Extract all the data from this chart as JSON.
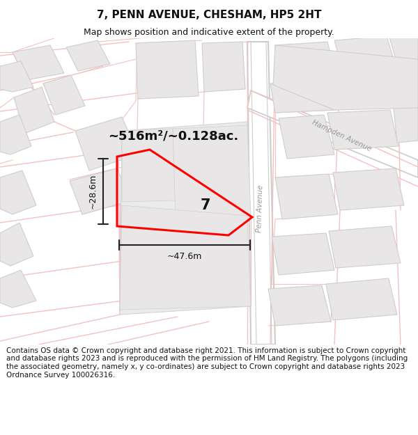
{
  "title": "7, PENN AVENUE, CHESHAM, HP5 2HT",
  "subtitle": "Map shows position and indicative extent of the property.",
  "footer": "Contains OS data © Crown copyright and database right 2021. This information is subject to Crown copyright and database rights 2023 and is reproduced with the permission of HM Land Registry. The polygons (including the associated geometry, namely x, y co-ordinates) are subject to Crown copyright and database rights 2023 Ordnance Survey 100026316.",
  "area_text": "~516m²/~0.128ac.",
  "dim_width": "~47.6m",
  "dim_height": "~28.6m",
  "number_label": "7",
  "penn_avenue_label": "Penn Avenue",
  "hampden_avenue_label": "Hampden Avenue",
  "title_fontsize": 11,
  "subtitle_fontsize": 9,
  "footer_fontsize": 7.5,
  "map_bg": "#ffffff",
  "road_fill": "#ffffff",
  "road_edge": "#f0b8b8",
  "bldg_fill": "#e8e6e6",
  "bldg_edge": "#d0cecd",
  "highlight_color": "#ff0000",
  "dim_color": "#222222",
  "label_color": "#999999"
}
